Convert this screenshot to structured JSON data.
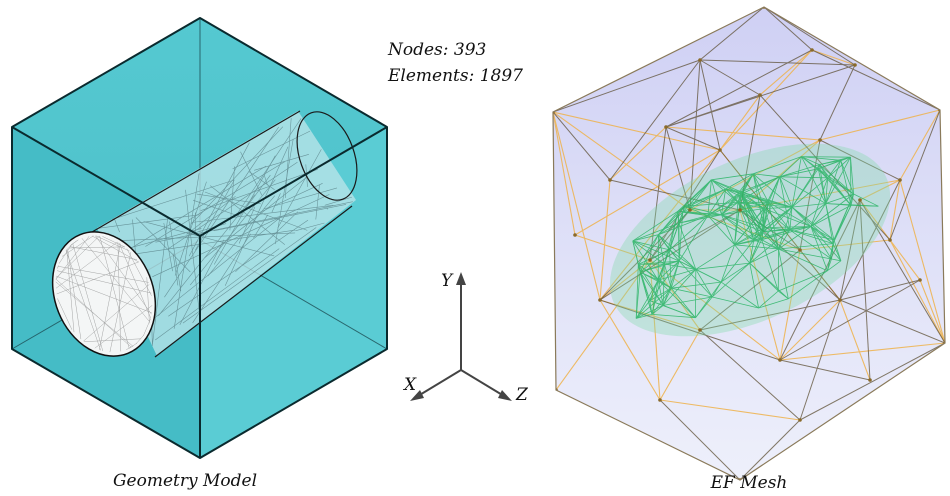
{
  "stats": {
    "nodes": "Nodes: 393",
    "elements": "Elements: 1897"
  },
  "captions": {
    "geometry": "Geometry Model",
    "mesh": "EF Mesh"
  },
  "axes": {
    "y": "Y",
    "x": "X",
    "z": "Z"
  },
  "colors": {
    "box_face": "#4cc3cc",
    "box_edge": "#0a2a2e",
    "cylinder_fill": "#e6f2f3",
    "mesh_bg": "#dcdcf6",
    "mesh_dark": "#6b5a3a",
    "mesh_orange": "#efb24a",
    "mesh_green": "#2bbf6a"
  }
}
